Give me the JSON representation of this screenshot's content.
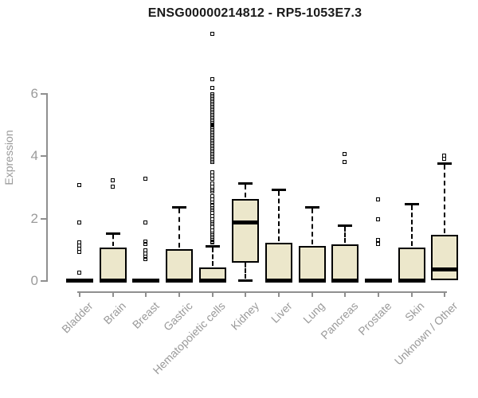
{
  "chart_data": {
    "type": "boxplot",
    "title": "ENSG00000214812 - RP5-1053E7.3",
    "ylabel": "Expression",
    "xlabel": "",
    "yticks": [
      0,
      2,
      4,
      6
    ],
    "ylim": [
      0,
      8.0
    ],
    "grid": false,
    "legend": "none",
    "categories": [
      "Bladder",
      "Brain",
      "Breast",
      "Gastric",
      "Hematopoietic cells",
      "Kidney",
      "Liver",
      "Lung",
      "Pancreas",
      "Prostate",
      "Skin",
      "Unknown / Other"
    ],
    "boxes": [
      {
        "category": "Bladder",
        "q1": 0,
        "median": 0,
        "q3": 0,
        "whisker_low": 0,
        "whisker_high": 0,
        "outliers": [
          3.05,
          1.85,
          1.2,
          1.1,
          1.0,
          0.9,
          0.25
        ]
      },
      {
        "category": "Brain",
        "q1": 0,
        "median": 0,
        "q3": 1.05,
        "whisker_low": 0,
        "whisker_high": 1.5,
        "outliers": [
          3.2,
          3.0
        ]
      },
      {
        "category": "Breast",
        "q1": 0,
        "median": 0,
        "q3": 0,
        "whisker_low": 0,
        "whisker_high": 0,
        "outliers": [
          3.25,
          1.85,
          1.25,
          1.15,
          0.95,
          0.85,
          0.75,
          0.68
        ]
      },
      {
        "category": "Gastric",
        "q1": 0,
        "median": 0,
        "q3": 1.0,
        "whisker_low": 0,
        "whisker_high": 2.35,
        "outliers": []
      },
      {
        "category": "Hematopoietic cells",
        "q1": 0,
        "median": 0,
        "q3": 0.4,
        "whisker_low": 0,
        "whisker_high": 1.1,
        "outliers": [
          7.9,
          6.45,
          6.15,
          5.95,
          5.9,
          5.85,
          5.8,
          5.75,
          5.7,
          5.65,
          5.6,
          5.55,
          5.5,
          5.45,
          5.4,
          5.35,
          5.3,
          5.25,
          5.2,
          5.15,
          5.1,
          5.05,
          5.0,
          4.95,
          4.9,
          4.85,
          4.8,
          4.75,
          4.7,
          4.65,
          4.6,
          4.55,
          4.5,
          4.45,
          4.4,
          4.35,
          4.3,
          4.25,
          4.2,
          4.15,
          4.1,
          4.05,
          4.0,
          3.95,
          3.9,
          3.85,
          3.8,
          3.45,
          3.35,
          3.25,
          3.1,
          3.0,
          2.9,
          2.85,
          2.7,
          2.6,
          2.5,
          2.4,
          2.3,
          2.25,
          2.15,
          2.05,
          1.95,
          1.85,
          1.8,
          1.7,
          1.6,
          1.5,
          1.45,
          1.35,
          1.3,
          1.25,
          1.2
        ]
      },
      {
        "category": "Kidney",
        "q1": 0.55,
        "median": 1.85,
        "q3": 2.6,
        "whisker_low": 0,
        "whisker_high": 3.1,
        "outliers": []
      },
      {
        "category": "Liver",
        "q1": 0,
        "median": 0,
        "q3": 1.2,
        "whisker_low": 0,
        "whisker_high": 2.9,
        "outliers": []
      },
      {
        "category": "Lung",
        "q1": 0,
        "median": 0,
        "q3": 1.1,
        "whisker_low": 0,
        "whisker_high": 2.35,
        "outliers": []
      },
      {
        "category": "Pancreas",
        "q1": 0,
        "median": 0,
        "q3": 1.15,
        "whisker_low": 0,
        "whisker_high": 1.75,
        "outliers": [
          4.05,
          3.8
        ]
      },
      {
        "category": "Prostate",
        "q1": 0,
        "median": 0,
        "q3": 0,
        "whisker_low": 0,
        "whisker_high": 0,
        "outliers": [
          2.6,
          1.95,
          1.3,
          1.15
        ]
      },
      {
        "category": "Skin",
        "q1": 0,
        "median": 0,
        "q3": 1.05,
        "whisker_low": 0,
        "whisker_high": 2.45,
        "outliers": []
      },
      {
        "category": "Unknown / Other",
        "q1": 0,
        "median": 0.35,
        "q3": 1.45,
        "whisker_low": 0,
        "whisker_high": 3.75,
        "outliers": [
          4.0,
          3.88
        ]
      }
    ],
    "colors": {
      "box_fill": "#ECE7CB",
      "box_border": "#000000",
      "axis": "#8F8F8F",
      "tick_label": "#9A9A9A",
      "title": "#1A1A1A"
    }
  }
}
